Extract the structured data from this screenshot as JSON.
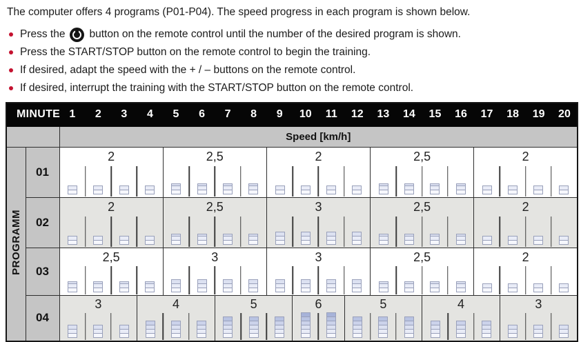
{
  "intro": {
    "heading": "The computer offers 4 programs (P01-P04). The speed progress in each program is shown below.",
    "bullet1_pre": "Press the",
    "bullet1_post": "button on the remote control until the number of the desired program is shown.",
    "bullet2": "Press the START/STOP button on the remote control to begin the training.",
    "bullet3": "If desired, adapt the speed with the + / – buttons on the remote control.",
    "bullet4": "If desired, interrupt the training with the START/STOP button on the remote control."
  },
  "table": {
    "minute_label": "MINUTE",
    "minutes": [
      "1",
      "2",
      "3",
      "4",
      "5",
      "6",
      "7",
      "8",
      "9",
      "10",
      "11",
      "12",
      "13",
      "14",
      "15",
      "16",
      "17",
      "18",
      "19",
      "20"
    ],
    "speed_header": "Speed [km/h]",
    "program_label": "PROGRAMM",
    "programs": [
      {
        "id": "01",
        "groups": [
          {
            "label": "2",
            "speed": 2,
            "span": 4
          },
          {
            "label": "2,5",
            "speed": 2.5,
            "span": 4
          },
          {
            "label": "2",
            "speed": 2,
            "span": 4
          },
          {
            "label": "2,5",
            "speed": 2.5,
            "span": 4
          },
          {
            "label": "2",
            "speed": 2,
            "span": 4
          }
        ]
      },
      {
        "id": "02",
        "groups": [
          {
            "label": "2",
            "speed": 2,
            "span": 4
          },
          {
            "label": "2,5",
            "speed": 2.5,
            "span": 4
          },
          {
            "label": "3",
            "speed": 3,
            "span": 4
          },
          {
            "label": "2,5",
            "speed": 2.5,
            "span": 4
          },
          {
            "label": "2",
            "speed": 2,
            "span": 4
          }
        ]
      },
      {
        "id": "03",
        "groups": [
          {
            "label": "2,5",
            "speed": 2.5,
            "span": 4
          },
          {
            "label": "3",
            "speed": 3,
            "span": 4
          },
          {
            "label": "3",
            "speed": 3,
            "span": 4
          },
          {
            "label": "2,5",
            "speed": 2.5,
            "span": 4
          },
          {
            "label": "2",
            "speed": 2,
            "span": 4
          }
        ]
      },
      {
        "id": "04",
        "groups": [
          {
            "label": "3",
            "speed": 3,
            "span": 3
          },
          {
            "label": "4",
            "speed": 4,
            "span": 3
          },
          {
            "label": "5",
            "speed": 5,
            "span": 3
          },
          {
            "label": "6",
            "speed": 6,
            "span": 2
          },
          {
            "label": "5",
            "speed": 5,
            "span": 3
          },
          {
            "label": "4",
            "speed": 4,
            "span": 3
          },
          {
            "label": "3",
            "speed": 3,
            "span": 3
          }
        ]
      }
    ]
  },
  "colors": {
    "accent_red": "#c41230",
    "header_bg": "#060606",
    "header_text": "#ffffff",
    "cell_gray": "#c5c5c5",
    "row_bg": "#ffffff",
    "row_alt_bg": "#e4e4e1",
    "grid_line": "#2d2d2d",
    "bar_border": "#99a0ba",
    "bar_palette": [
      "#a7b3d9",
      "#b9c3e2",
      "#cbd2ea",
      "#dce1f1",
      "#e9ecf7",
      "#f6f7fc"
    ]
  }
}
